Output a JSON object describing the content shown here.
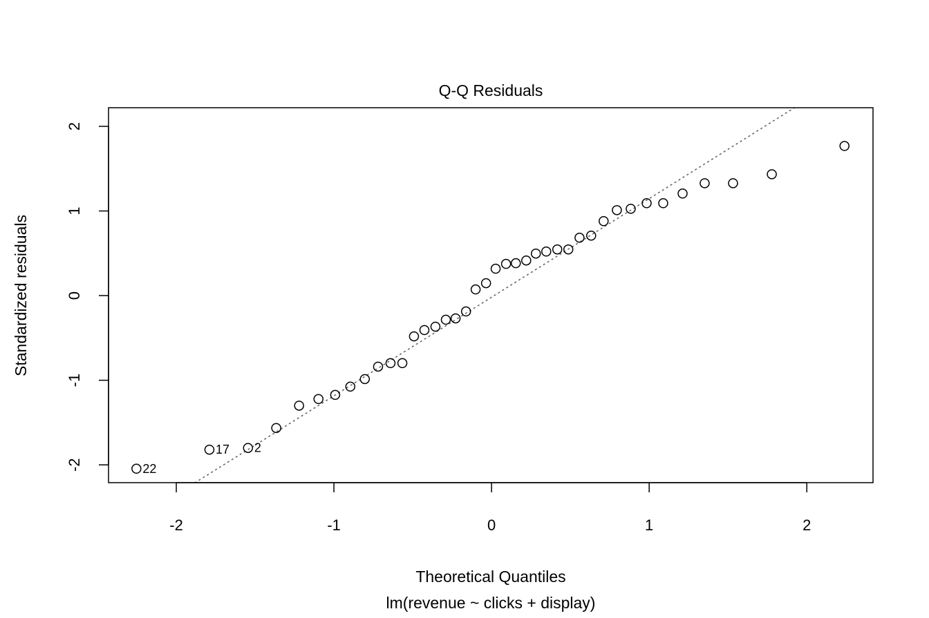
{
  "chart_data": {
    "type": "scatter",
    "title": "Q-Q Residuals",
    "xlabel": "Theoretical Quantiles",
    "sublabel": "lm(revenue ~ clicks + display)",
    "ylabel": "Standardized residuals",
    "xlim": [
      -2.43,
      2.42
    ],
    "ylim": [
      -2.21,
      2.22
    ],
    "xticks": [
      -2,
      -1,
      0,
      1,
      2
    ],
    "yticks": [
      -2,
      -1,
      0,
      1,
      2
    ],
    "grid": false,
    "reference_line": {
      "intercept": -0.019,
      "slope": 1.165,
      "style": "dotted",
      "color": "#666666"
    },
    "points": [
      {
        "x": -2.253,
        "y": -2.045,
        "label": "22"
      },
      {
        "x": -1.79,
        "y": -1.82,
        "label": "17"
      },
      {
        "x": -1.545,
        "y": -1.8,
        "label": "2"
      },
      {
        "x": -1.366,
        "y": -1.564
      },
      {
        "x": -1.221,
        "y": -1.3
      },
      {
        "x": -1.098,
        "y": -1.222
      },
      {
        "x": -0.992,
        "y": -1.173
      },
      {
        "x": -0.896,
        "y": -1.075
      },
      {
        "x": -0.804,
        "y": -0.986
      },
      {
        "x": -0.72,
        "y": -0.839
      },
      {
        "x": -0.641,
        "y": -0.798
      },
      {
        "x": -0.566,
        "y": -0.798
      },
      {
        "x": -0.492,
        "y": -0.481
      },
      {
        "x": -0.426,
        "y": -0.407
      },
      {
        "x": -0.356,
        "y": -0.367
      },
      {
        "x": -0.29,
        "y": -0.285
      },
      {
        "x": -0.228,
        "y": -0.269
      },
      {
        "x": -0.162,
        "y": -0.187
      },
      {
        "x": -0.101,
        "y": 0.073
      },
      {
        "x": -0.035,
        "y": 0.147
      },
      {
        "x": 0.026,
        "y": 0.318
      },
      {
        "x": 0.092,
        "y": 0.375
      },
      {
        "x": 0.154,
        "y": 0.383
      },
      {
        "x": 0.22,
        "y": 0.415
      },
      {
        "x": 0.281,
        "y": 0.497
      },
      {
        "x": 0.347,
        "y": 0.521
      },
      {
        "x": 0.417,
        "y": 0.546
      },
      {
        "x": 0.487,
        "y": 0.546
      },
      {
        "x": 0.558,
        "y": 0.684
      },
      {
        "x": 0.632,
        "y": 0.709
      },
      {
        "x": 0.711,
        "y": 0.88
      },
      {
        "x": 0.795,
        "y": 1.01
      },
      {
        "x": 0.883,
        "y": 1.026
      },
      {
        "x": 0.984,
        "y": 1.092
      },
      {
        "x": 1.089,
        "y": 1.092
      },
      {
        "x": 1.212,
        "y": 1.206
      },
      {
        "x": 1.352,
        "y": 1.328
      },
      {
        "x": 1.532,
        "y": 1.328
      },
      {
        "x": 1.778,
        "y": 1.434
      },
      {
        "x": 2.239,
        "y": 1.768
      }
    ]
  }
}
